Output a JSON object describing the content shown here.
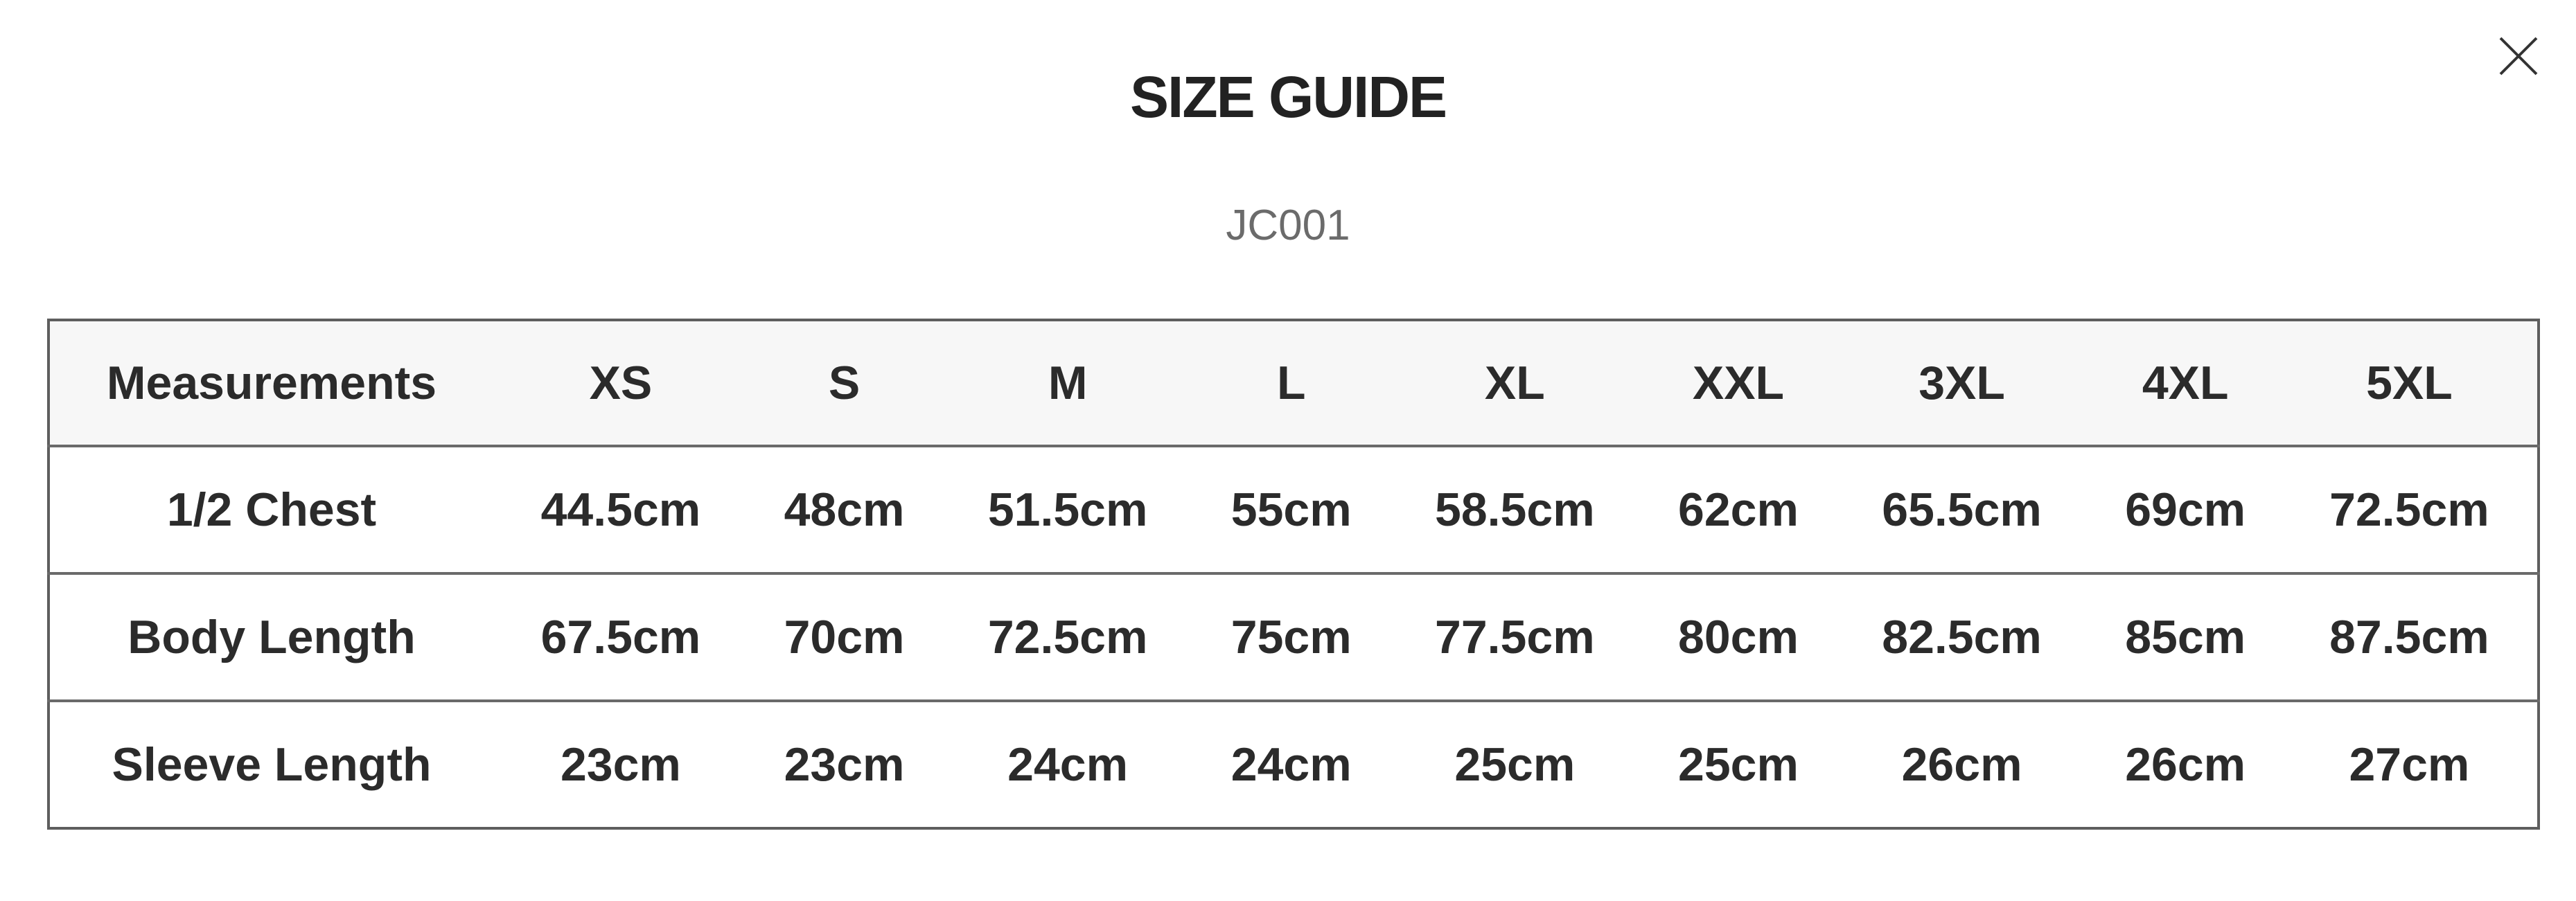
{
  "dialog": {
    "title": "SIZE GUIDE",
    "product_code": "JC001",
    "close_icon": "close-x-icon"
  },
  "table": {
    "headers": [
      "Measurements",
      "XS",
      "S",
      "M",
      "L",
      "XL",
      "XXL",
      "3XL",
      "4XL",
      "5XL"
    ],
    "rows": [
      [
        "1/2 Chest",
        "44.5cm",
        "48cm",
        "51.5cm",
        "55cm",
        "58.5cm",
        "62cm",
        "65.5cm",
        "69cm",
        "72.5cm"
      ],
      [
        "Body Length",
        "67.5cm",
        "70cm",
        "72.5cm",
        "75cm",
        "77.5cm",
        "80cm",
        "82.5cm",
        "85cm",
        "87.5cm"
      ],
      [
        "Sleeve Length",
        "23cm",
        "23cm",
        "24cm",
        "24cm",
        "25cm",
        "25cm",
        "26cm",
        "26cm",
        "27cm"
      ]
    ]
  }
}
